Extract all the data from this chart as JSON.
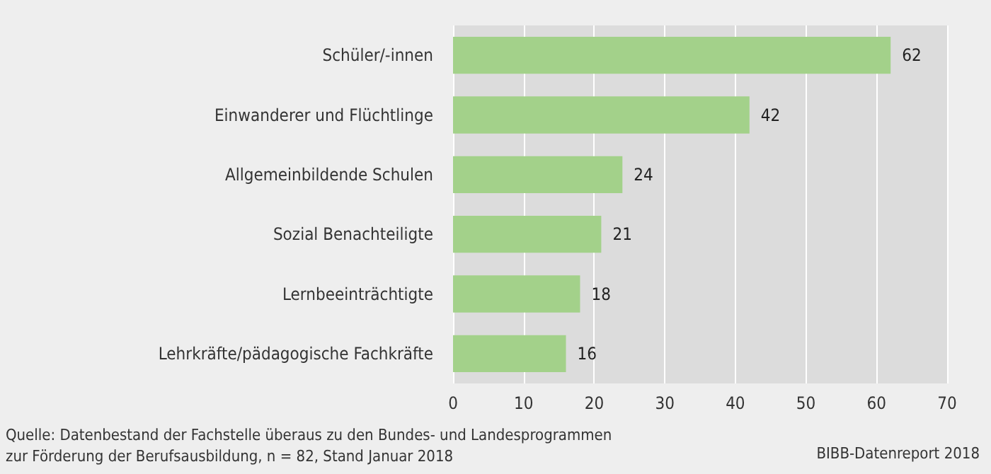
{
  "chart_data": {
    "type": "bar",
    "orientation": "horizontal",
    "categories": [
      "Schüler/-innen",
      "Einwanderer und Flüchtlinge",
      "Allgemeinbildende Schulen",
      "Sozial Benachteiligte",
      "Lernbeeinträchtigte",
      "Lehrkräfte/pädagogische Fachkräfte"
    ],
    "values": [
      62,
      42,
      24,
      21,
      18,
      16
    ],
    "color": "#a3d18a",
    "xlim": [
      0,
      70
    ],
    "xticks": [
      0,
      10,
      20,
      30,
      40,
      50,
      60,
      70
    ],
    "grid": "x",
    "data_labels": true,
    "annotations": [
      "Quelle: Datenbestand der Fachstelle überaus zu den Bundes- und Landesprogrammen\nzur Förderung der Berufsausbildung, n = 82, Stand Januar 2018",
      "BIBB-Datenreport 2018"
    ]
  }
}
